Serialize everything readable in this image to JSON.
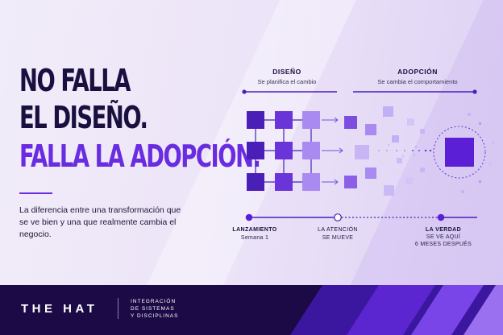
{
  "headline": {
    "line1": "NO FALLA",
    "line2": "EL DISEÑO.",
    "line3": "FALLA LA ADOPCIÓN."
  },
  "body_text": "La diferencia entre una transformación que se ve bien y una que realmente cambia el negocio.",
  "diagram": {
    "design": {
      "title": "DISEÑO",
      "subtitle": "Se planifica el cambio"
    },
    "adoption": {
      "title": "ADOPCIÓN",
      "subtitle": "Se cambia el comportamiento"
    },
    "milestones": [
      {
        "label": "LANZAMIENTO",
        "sub": "Semana 1"
      },
      {
        "label": "LA ATENCIÓN",
        "sub": "SE MUEVE"
      },
      {
        "label": "LA VERDAD",
        "sub": "SE VE AQUÍ\n6 MESES DESPUÉS",
        "sub1": "SE VE AQUÍ",
        "sub2": "6 MESES DESPUÉS"
      }
    ]
  },
  "colors": {
    "dark": "#1a1040",
    "accent": "#6a2ce0",
    "grid_dark": "#4a1fb8",
    "grid_mid": "#7d4de0",
    "grid_light": "#a98af0",
    "footer_bg": "#1b0a45"
  },
  "footer": {
    "logo": "THE HAT",
    "tagline1": "INTEGRACIÓN",
    "tagline2": "DE SISTEMAS",
    "tagline3": "Y DISCIPLINAS"
  }
}
